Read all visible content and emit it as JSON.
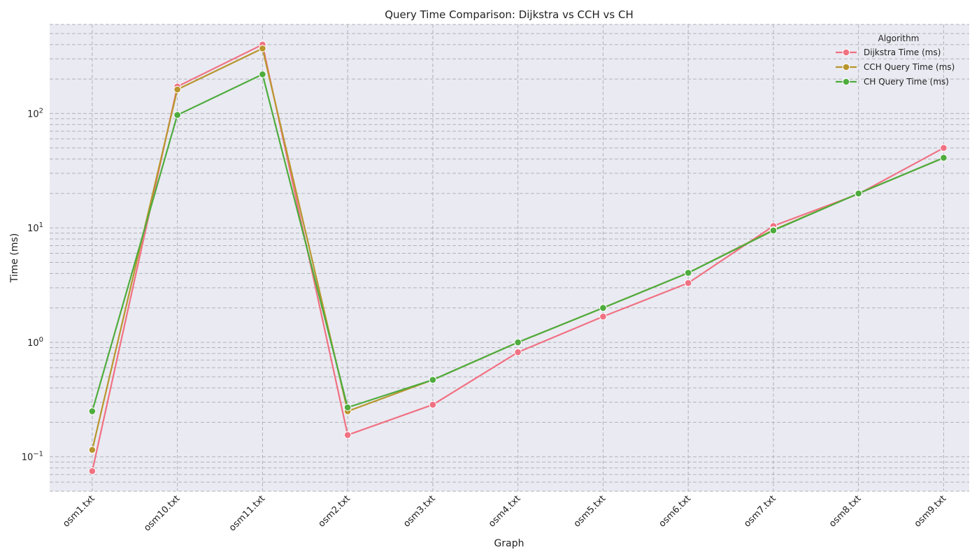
{
  "chart_data": {
    "type": "line",
    "title": "Query Time Comparison: Dijkstra vs CCH vs CH",
    "xlabel": "Graph",
    "ylabel": "Time (ms)",
    "yscale": "log",
    "ylim": [
      0.05,
      600
    ],
    "yticks": [
      0.1,
      1,
      10,
      100
    ],
    "ytick_labels": [
      {
        "base": "10",
        "exp": "−1"
      },
      {
        "base": "10",
        "exp": "0"
      },
      {
        "base": "10",
        "exp": "1"
      },
      {
        "base": "10",
        "exp": "2"
      }
    ],
    "grid": true,
    "legend_title": "Algorithm",
    "legend_position": "top-right",
    "categories": [
      "osm1.txt",
      "osm10.txt",
      "osm11.txt",
      "osm2.txt",
      "osm3.txt",
      "osm4.txt",
      "osm5.txt",
      "osm6.txt",
      "osm7.txt",
      "osm8.txt",
      "osm9.txt"
    ],
    "series": [
      {
        "name": "Dijkstra Time (ms)",
        "color": "#f07182",
        "values": [
          0.075,
          172,
          400,
          0.155,
          0.285,
          0.82,
          1.68,
          3.3,
          10.4,
          19.8,
          50
        ]
      },
      {
        "name": "CCH Query Time (ms)",
        "color": "#b8962e",
        "values": [
          0.115,
          162,
          370,
          0.25,
          0.47,
          1.0,
          2.0,
          4.05,
          9.6,
          20,
          41
        ]
      },
      {
        "name": "CH Query Time (ms)",
        "color": "#4eac3d",
        "values": [
          0.25,
          97,
          220,
          0.27,
          0.47,
          1.0,
          2.0,
          4.05,
          9.5,
          20,
          41
        ]
      }
    ]
  }
}
